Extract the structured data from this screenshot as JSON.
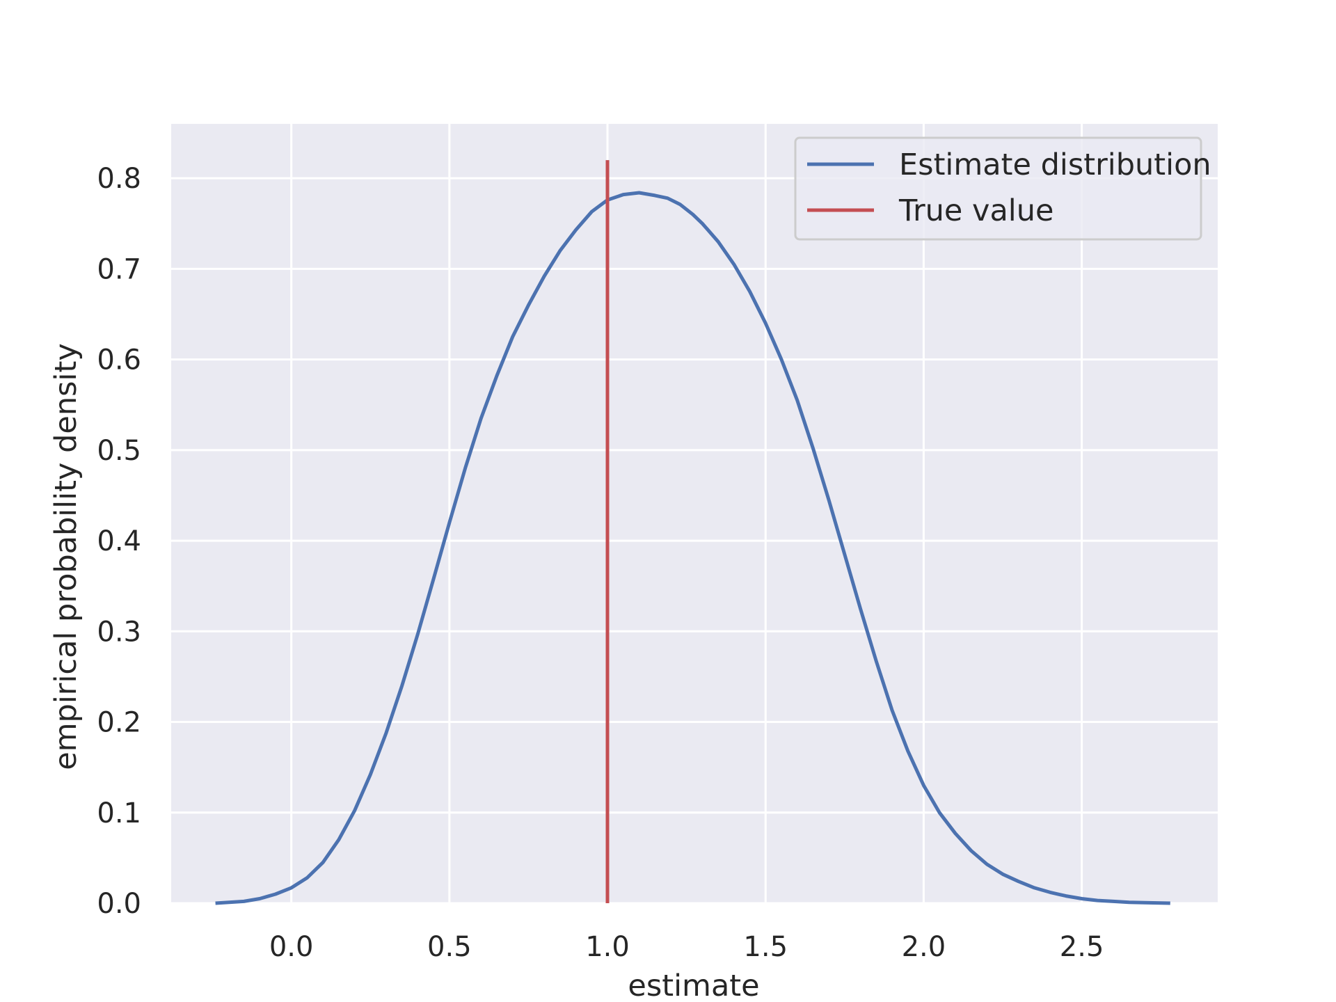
{
  "chart_data": {
    "type": "line",
    "title": "",
    "xlabel": "estimate",
    "ylabel": "empirical probability density",
    "xlim": [
      -0.38,
      2.93
    ],
    "ylim": [
      0.0,
      0.86
    ],
    "xticks": [
      0.0,
      0.5,
      1.0,
      1.5,
      2.0,
      2.5
    ],
    "xtick_labels": [
      "0.0",
      "0.5",
      "1.0",
      "1.5",
      "2.0",
      "2.5"
    ],
    "yticks": [
      0.0,
      0.1,
      0.2,
      0.3,
      0.4,
      0.5,
      0.6,
      0.7,
      0.8
    ],
    "ytick_labels": [
      "0.0",
      "0.1",
      "0.2",
      "0.3",
      "0.4",
      "0.5",
      "0.6",
      "0.7",
      "0.8"
    ],
    "grid": true,
    "background": "#eaeaf2",
    "grid_color": "#ffffff",
    "legend_position": "top-right",
    "series": [
      {
        "name": "Estimate distribution",
        "color": "#4c72b0",
        "x": [
          -0.24,
          -0.15,
          -0.1,
          -0.05,
          0.0,
          0.05,
          0.1,
          0.15,
          0.2,
          0.25,
          0.3,
          0.35,
          0.4,
          0.45,
          0.5,
          0.55,
          0.6,
          0.65,
          0.7,
          0.75,
          0.8,
          0.85,
          0.9,
          0.95,
          1.0,
          1.05,
          1.1,
          1.15,
          1.19,
          1.23,
          1.27,
          1.3,
          1.35,
          1.4,
          1.45,
          1.5,
          1.55,
          1.6,
          1.65,
          1.7,
          1.75,
          1.8,
          1.85,
          1.9,
          1.95,
          2.0,
          2.05,
          2.1,
          2.15,
          2.2,
          2.25,
          2.3,
          2.35,
          2.4,
          2.45,
          2.5,
          2.55,
          2.6,
          2.65,
          2.7,
          2.78
        ],
        "y": [
          0.0,
          0.002,
          0.005,
          0.01,
          0.017,
          0.028,
          0.045,
          0.07,
          0.102,
          0.142,
          0.188,
          0.24,
          0.297,
          0.358,
          0.42,
          0.48,
          0.535,
          0.582,
          0.625,
          0.66,
          0.692,
          0.72,
          0.743,
          0.763,
          0.776,
          0.782,
          0.784,
          0.781,
          0.778,
          0.771,
          0.76,
          0.75,
          0.73,
          0.705,
          0.675,
          0.64,
          0.6,
          0.555,
          0.502,
          0.445,
          0.385,
          0.325,
          0.267,
          0.213,
          0.168,
          0.13,
          0.1,
          0.077,
          0.058,
          0.043,
          0.032,
          0.024,
          0.017,
          0.012,
          0.008,
          0.005,
          0.003,
          0.002,
          0.001,
          0.0005,
          0.0
        ]
      },
      {
        "name": "True value",
        "color": "#c44e52",
        "x": [
          1.0,
          1.0
        ],
        "y": [
          0.0,
          0.82
        ]
      }
    ]
  }
}
